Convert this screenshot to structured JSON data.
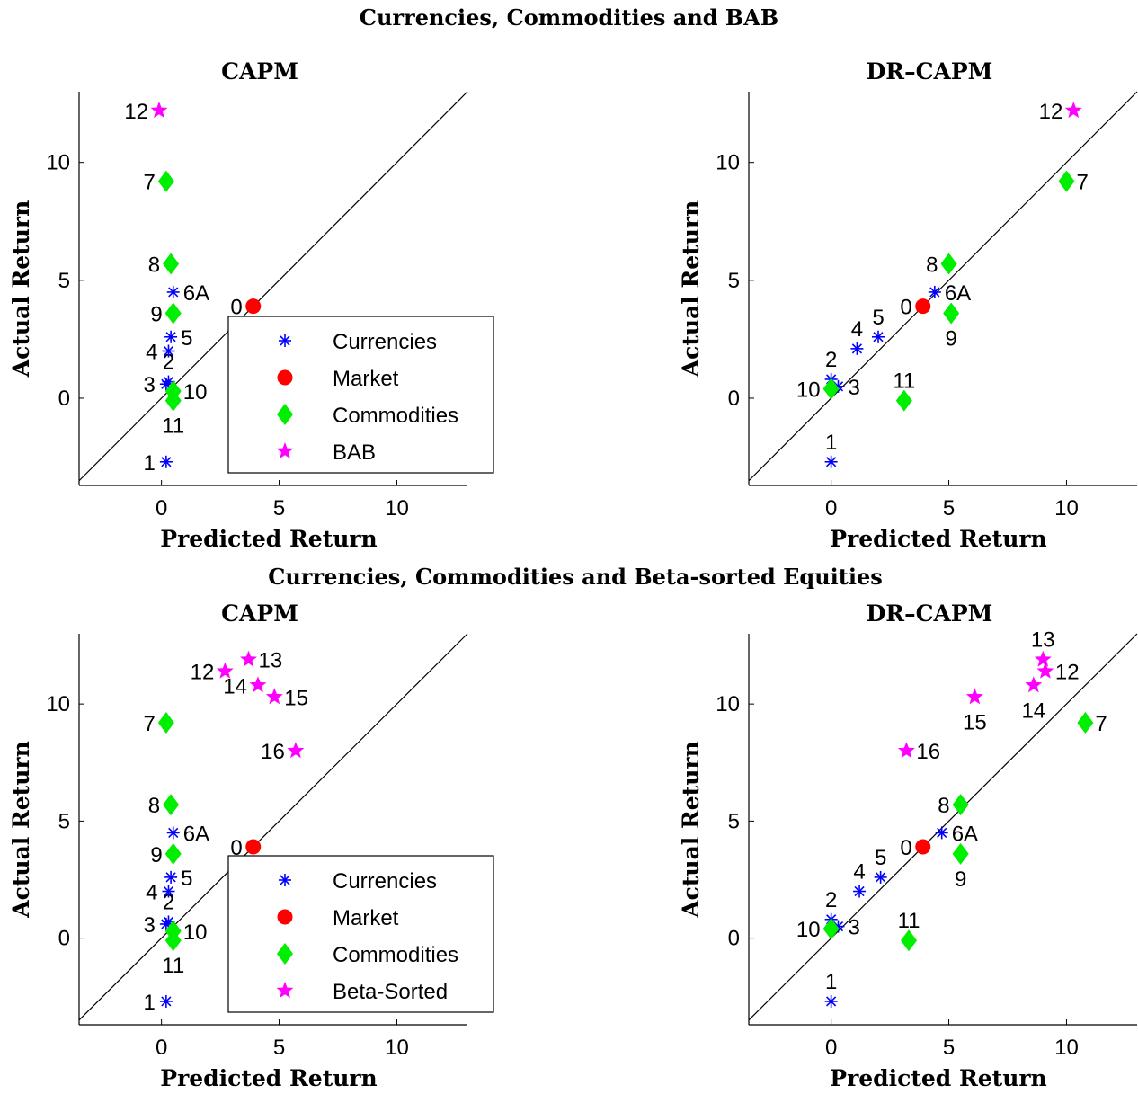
{
  "sections": [
    {
      "title": "Currencies, Commodities and BAB"
    },
    {
      "title": "Currencies, Commodities and Beta-sorted Equities"
    }
  ],
  "colors": {
    "Currencies": "#0000ff",
    "Market": "#ff0000",
    "Commodities": "#00ee00",
    "BAB": "#ff00ff",
    "Beta-Sorted": "#ff00ff",
    "line": "#000000"
  },
  "markers": {
    "Currencies": "asterisk",
    "Market": "circle",
    "Commodities": "diamond",
    "BAB": "star",
    "Beta-Sorted": "star"
  },
  "chart_data": [
    {
      "type": "scatter",
      "section": 0,
      "title": "CAPM",
      "xlabel": "Predicted Return",
      "ylabel": "Actual Return",
      "xlim": [
        -3.5,
        13
      ],
      "ylim": [
        -3.7,
        13
      ],
      "xticks": [
        0,
        5,
        10
      ],
      "yticks": [
        0,
        5,
        10
      ],
      "diagonal": true,
      "legend": {
        "entries": [
          "Currencies",
          "Market",
          "Commodities",
          "BAB"
        ],
        "position": "bottom-right"
      },
      "points": [
        {
          "label": "0",
          "group": "Market",
          "x": 3.9,
          "y": 3.9,
          "lpos": "w"
        },
        {
          "label": "1",
          "group": "Currencies",
          "x": 0.2,
          "y": -2.7,
          "lpos": "w"
        },
        {
          "label": "2",
          "group": "Currencies",
          "x": 0.3,
          "y": 0.7,
          "lpos": "n"
        },
        {
          "label": "3",
          "group": "Currencies",
          "x": 0.2,
          "y": 0.6,
          "lpos": "w"
        },
        {
          "label": "4",
          "group": "Currencies",
          "x": 0.3,
          "y": 2.0,
          "lpos": "w"
        },
        {
          "label": "5",
          "group": "Currencies",
          "x": 0.4,
          "y": 2.6,
          "lpos": "e"
        },
        {
          "label": "6A",
          "group": "Currencies",
          "x": 0.5,
          "y": 4.5,
          "lpos": "e"
        },
        {
          "label": "7",
          "group": "Commodities",
          "x": 0.2,
          "y": 9.2,
          "lpos": "w"
        },
        {
          "label": "8",
          "group": "Commodities",
          "x": 0.4,
          "y": 5.7,
          "lpos": "w"
        },
        {
          "label": "9",
          "group": "Commodities",
          "x": 0.5,
          "y": 3.6,
          "lpos": "w"
        },
        {
          "label": "10",
          "group": "Commodities",
          "x": 0.5,
          "y": 0.3,
          "lpos": "e"
        },
        {
          "label": "11",
          "group": "Commodities",
          "x": 0.5,
          "y": -0.1,
          "lpos": "s"
        },
        {
          "label": "12",
          "group": "BAB",
          "x": -0.1,
          "y": 12.2,
          "lpos": "w"
        }
      ]
    },
    {
      "type": "scatter",
      "section": 0,
      "title": "DR–CAPM",
      "xlabel": "Predicted Return",
      "ylabel": "Actual Return",
      "xlim": [
        -3.5,
        13
      ],
      "ylim": [
        -3.7,
        13
      ],
      "xticks": [
        0,
        5,
        10
      ],
      "yticks": [
        0,
        5,
        10
      ],
      "diagonal": true,
      "points": [
        {
          "label": "0",
          "group": "Market",
          "x": 3.9,
          "y": 3.9,
          "lpos": "w"
        },
        {
          "label": "1",
          "group": "Currencies",
          "x": 0.0,
          "y": -2.7,
          "lpos": "n"
        },
        {
          "label": "2",
          "group": "Currencies",
          "x": 0.0,
          "y": 0.8,
          "lpos": "n"
        },
        {
          "label": "3",
          "group": "Currencies",
          "x": 0.3,
          "y": 0.5,
          "lpos": "e"
        },
        {
          "label": "4",
          "group": "Currencies",
          "x": 1.1,
          "y": 2.1,
          "lpos": "n"
        },
        {
          "label": "5",
          "group": "Currencies",
          "x": 2.0,
          "y": 2.6,
          "lpos": "n"
        },
        {
          "label": "6A",
          "group": "Currencies",
          "x": 4.4,
          "y": 4.5,
          "lpos": "e"
        },
        {
          "label": "7",
          "group": "Commodities",
          "x": 10.0,
          "y": 9.2,
          "lpos": "e"
        },
        {
          "label": "8",
          "group": "Commodities",
          "x": 5.0,
          "y": 5.7,
          "lpos": "w"
        },
        {
          "label": "9",
          "group": "Commodities",
          "x": 5.1,
          "y": 3.6,
          "lpos": "s"
        },
        {
          "label": "10",
          "group": "Commodities",
          "x": 0.0,
          "y": 0.4,
          "lpos": "w"
        },
        {
          "label": "11",
          "group": "Commodities",
          "x": 3.1,
          "y": -0.1,
          "lpos": "n"
        },
        {
          "label": "12",
          "group": "BAB",
          "x": 10.3,
          "y": 12.2,
          "lpos": "w"
        }
      ]
    },
    {
      "type": "scatter",
      "section": 1,
      "title": "CAPM",
      "xlabel": "Predicted Return",
      "ylabel": "Actual Return",
      "xlim": [
        -3.5,
        13
      ],
      "ylim": [
        -3.7,
        13
      ],
      "xticks": [
        0,
        5,
        10
      ],
      "yticks": [
        0,
        5,
        10
      ],
      "diagonal": true,
      "legend": {
        "entries": [
          "Currencies",
          "Market",
          "Commodities",
          "Beta-Sorted"
        ],
        "position": "bottom-right"
      },
      "points": [
        {
          "label": "0",
          "group": "Market",
          "x": 3.9,
          "y": 3.9,
          "lpos": "w"
        },
        {
          "label": "1",
          "group": "Currencies",
          "x": 0.2,
          "y": -2.7,
          "lpos": "w"
        },
        {
          "label": "2",
          "group": "Currencies",
          "x": 0.3,
          "y": 0.7,
          "lpos": "n"
        },
        {
          "label": "3",
          "group": "Currencies",
          "x": 0.2,
          "y": 0.6,
          "lpos": "w"
        },
        {
          "label": "4",
          "group": "Currencies",
          "x": 0.3,
          "y": 2.0,
          "lpos": "w"
        },
        {
          "label": "5",
          "group": "Currencies",
          "x": 0.4,
          "y": 2.6,
          "lpos": "e"
        },
        {
          "label": "6A",
          "group": "Currencies",
          "x": 0.5,
          "y": 4.5,
          "lpos": "e"
        },
        {
          "label": "7",
          "group": "Commodities",
          "x": 0.2,
          "y": 9.2,
          "lpos": "w"
        },
        {
          "label": "8",
          "group": "Commodities",
          "x": 0.4,
          "y": 5.7,
          "lpos": "w"
        },
        {
          "label": "9",
          "group": "Commodities",
          "x": 0.5,
          "y": 3.6,
          "lpos": "w"
        },
        {
          "label": "10",
          "group": "Commodities",
          "x": 0.5,
          "y": 0.3,
          "lpos": "e"
        },
        {
          "label": "11",
          "group": "Commodities",
          "x": 0.5,
          "y": -0.1,
          "lpos": "s"
        },
        {
          "label": "12",
          "group": "Beta-Sorted",
          "x": 2.7,
          "y": 11.4,
          "lpos": "w"
        },
        {
          "label": "13",
          "group": "Beta-Sorted",
          "x": 3.7,
          "y": 11.9,
          "lpos": "e"
        },
        {
          "label": "14",
          "group": "Beta-Sorted",
          "x": 4.1,
          "y": 10.8,
          "lpos": "w"
        },
        {
          "label": "15",
          "group": "Beta-Sorted",
          "x": 4.8,
          "y": 10.3,
          "lpos": "e"
        },
        {
          "label": "16",
          "group": "Beta-Sorted",
          "x": 5.7,
          "y": 8.0,
          "lpos": "w"
        }
      ]
    },
    {
      "type": "scatter",
      "section": 1,
      "title": "DR–CAPM",
      "xlabel": "Predicted Return",
      "ylabel": "Actual Return",
      "xlim": [
        -3.5,
        13
      ],
      "ylim": [
        -3.7,
        13
      ],
      "xticks": [
        0,
        5,
        10
      ],
      "yticks": [
        0,
        5,
        10
      ],
      "diagonal": true,
      "points": [
        {
          "label": "0",
          "group": "Market",
          "x": 3.9,
          "y": 3.9,
          "lpos": "w"
        },
        {
          "label": "1",
          "group": "Currencies",
          "x": 0.0,
          "y": -2.7,
          "lpos": "n"
        },
        {
          "label": "2",
          "group": "Currencies",
          "x": 0.0,
          "y": 0.8,
          "lpos": "n"
        },
        {
          "label": "3",
          "group": "Currencies",
          "x": 0.3,
          "y": 0.5,
          "lpos": "e"
        },
        {
          "label": "4",
          "group": "Currencies",
          "x": 1.2,
          "y": 2.0,
          "lpos": "n"
        },
        {
          "label": "5",
          "group": "Currencies",
          "x": 2.1,
          "y": 2.6,
          "lpos": "n"
        },
        {
          "label": "6A",
          "group": "Currencies",
          "x": 4.7,
          "y": 4.5,
          "lpos": "e"
        },
        {
          "label": "7",
          "group": "Commodities",
          "x": 10.8,
          "y": 9.2,
          "lpos": "e"
        },
        {
          "label": "8",
          "group": "Commodities",
          "x": 5.5,
          "y": 5.7,
          "lpos": "w"
        },
        {
          "label": "9",
          "group": "Commodities",
          "x": 5.5,
          "y": 3.6,
          "lpos": "s"
        },
        {
          "label": "10",
          "group": "Commodities",
          "x": 0.0,
          "y": 0.4,
          "lpos": "w"
        },
        {
          "label": "11",
          "group": "Commodities",
          "x": 3.3,
          "y": -0.1,
          "lpos": "n"
        },
        {
          "label": "12",
          "group": "Beta-Sorted",
          "x": 9.1,
          "y": 11.4,
          "lpos": "e"
        },
        {
          "label": "13",
          "group": "Beta-Sorted",
          "x": 9.0,
          "y": 11.9,
          "lpos": "n"
        },
        {
          "label": "14",
          "group": "Beta-Sorted",
          "x": 8.6,
          "y": 10.8,
          "lpos": "s"
        },
        {
          "label": "15",
          "group": "Beta-Sorted",
          "x": 6.1,
          "y": 10.3,
          "lpos": "s"
        },
        {
          "label": "16",
          "group": "Beta-Sorted",
          "x": 3.2,
          "y": 8.0,
          "lpos": "e"
        }
      ]
    }
  ]
}
